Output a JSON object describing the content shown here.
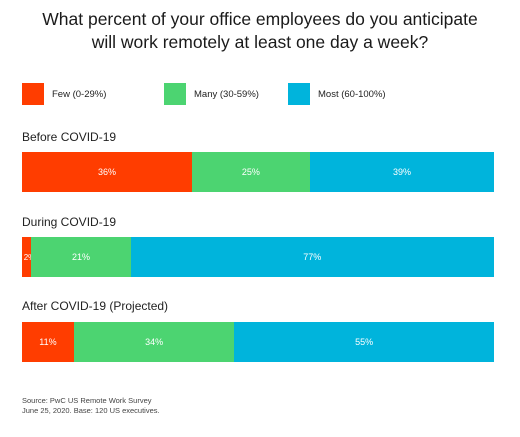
{
  "title_lines": [
    "What percent of your office employees do you anticipate",
    "will work remotely at least one day a week?"
  ],
  "source_lines": [
    "Source: PwC US Remote Work Survey",
    "June 25, 2020. Base: 120 US executives."
  ],
  "colors": {
    "few": "#FF3D00",
    "many": "#4CD471",
    "most": "#00B4DC"
  },
  "chart_data": {
    "type": "bar",
    "orientation": "horizontal",
    "stacked": true,
    "unit": "%",
    "title": "What percent of your office employees do you anticipate will work remotely at least one day a week?",
    "legend_position": "top",
    "series": [
      {
        "name": "Few (0-29%)",
        "color": "#FF3D00",
        "values": [
          36,
          2,
          11
        ],
        "labels": [
          "36%",
          "2%",
          "11%"
        ]
      },
      {
        "name": "Many (30-59%)",
        "color": "#4CD471",
        "values": [
          25,
          21,
          34
        ],
        "labels": [
          "25%",
          "21%",
          "34%"
        ]
      },
      {
        "name": "Most (60-100%)",
        "color": "#00B4DC",
        "values": [
          39,
          77,
          55
        ],
        "labels": [
          "39%",
          "77%",
          "55%"
        ]
      }
    ],
    "categories": [
      "Before COVID-19",
      "During COVID-19",
      "After COVID-19 (Projected)"
    ],
    "grid": false
  }
}
